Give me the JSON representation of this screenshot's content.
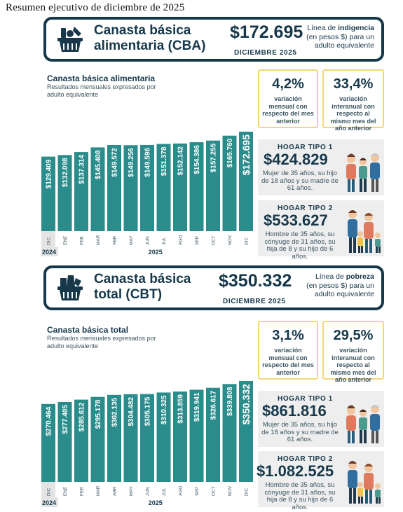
{
  "doc_title": "Resumen  ejecutivo  de diciembre  de 2025",
  "cba": {
    "header": {
      "title_line1": "Canasta básica",
      "title_line2": "alimentaria (CBA)",
      "value": "$172.695",
      "month": "DICIEMBRE 2025",
      "note_pre": "Línea de",
      "note_bold": "indigencia",
      "note_post": "(en pesos $) para un adulto equivalente"
    },
    "chart_title": "Canasta básica alimentaria",
    "chart_subtitle": "Resultados mensuales expresados por adulto equivalente",
    "stat_monthly": {
      "pct": "4,2%",
      "desc": "variación mensual con respecto del mes anterior"
    },
    "stat_annual": {
      "pct": "33,4%",
      "desc": "variación interanual con respecto al mismo mes del año anterior"
    },
    "hogar1": {
      "title": "HOGAR TIPO 1",
      "value": "$424.829",
      "desc": "Mujer de 35 años, su hijo de 18 años y su madre de 61 años."
    },
    "hogar2": {
      "title": "HOGAR TIPO 2",
      "value": "$533.627",
      "desc": "Hombre de 35 años, su cónyuge de 31 años, su hija de 8 y su hijo de 6 años."
    }
  },
  "cbt": {
    "header": {
      "title_line1": "Canasta básica",
      "title_line2": "total (CBT)",
      "value": "$350.332",
      "month": "DICIEMBRE 2025",
      "note_pre": "Línea de",
      "note_bold": "pobreza",
      "note_post": "(en pesos $) para un adulto equivalente"
    },
    "chart_title": "Canasta básica total",
    "chart_subtitle": "Resultados mensuales expresados por adulto equivalente",
    "stat_monthly": {
      "pct": "3,1%",
      "desc": "variación mensual con respecto del mes anterior"
    },
    "stat_annual": {
      "pct": "29,5%",
      "desc": "variación interanual con respecto al mismo mes del año anterior"
    },
    "hogar1": {
      "title": "HOGAR TIPO 1",
      "value": "$861.816",
      "desc": "Mujer de 35 años, su hijo de 18 años y su madre de 61 años."
    },
    "hogar2": {
      "title": "HOGAR TIPO 2",
      "value": "$1.082.525",
      "desc": "Hombre de 35 años, su cónyuge de 31 años, su hija de 8 y su hijo de 6 años."
    }
  },
  "colors": {
    "bar": "#2b8c8c",
    "navy": "#16384a",
    "highlight": "#f2d77a",
    "card": "#eeeeee"
  },
  "chart_data": [
    {
      "type": "bar",
      "title": "Canasta básica alimentaria",
      "subtitle": "Resultados mensuales expresados por adulto equivalente",
      "categories": [
        "DIC",
        "ENE",
        "FEB",
        "MAR",
        "ABR",
        "MAY",
        "JUN",
        "JUL",
        "AGO",
        "SEP",
        "OCT",
        "NOV",
        "DIC"
      ],
      "values": [
        129409,
        132098,
        137314,
        145408,
        149572,
        149256,
        149596,
        151378,
        152142,
        154386,
        157255,
        165760,
        172695
      ],
      "labels": [
        "$129.409",
        "$132.098",
        "$137.314",
        "$145.408",
        "$149.572",
        "$149.256",
        "$149.596",
        "$151.378",
        "$152.142",
        "$154.386",
        "$157.255",
        "$165.760",
        "$172.695"
      ],
      "year_groups": [
        {
          "label": "2024",
          "from": 0,
          "to": 0
        },
        {
          "label": "2025",
          "from": 1,
          "to": 12
        }
      ],
      "ylim": [
        0,
        180000
      ]
    },
    {
      "type": "bar",
      "title": "Canasta básica total",
      "subtitle": "Resultados mensuales expresados por adulto equivalente",
      "categories": [
        "DIC",
        "ENE",
        "FEB",
        "MAR",
        "ABR",
        "MAY",
        "JUN",
        "JUL",
        "AGO",
        "SEP",
        "OCT",
        "NOV",
        "DIC"
      ],
      "values": [
        270464,
        277405,
        285612,
        295178,
        302135,
        304482,
        305175,
        310325,
        313859,
        319941,
        326617,
        339808,
        350332
      ],
      "labels": [
        "$270.464",
        "$277.405",
        "$285.612",
        "$295.178",
        "$302.135",
        "$304.482",
        "$305.175",
        "$310.325",
        "$313.859",
        "$319.941",
        "$326.617",
        "$339.808",
        "$350.332"
      ],
      "year_groups": [
        {
          "label": "2024",
          "from": 0,
          "to": 0
        },
        {
          "label": "2025",
          "from": 1,
          "to": 12
        }
      ],
      "ylim": [
        0,
        360000
      ]
    }
  ]
}
